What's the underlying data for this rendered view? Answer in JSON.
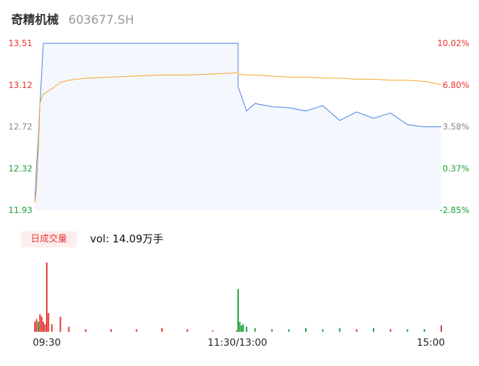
{
  "header": {
    "stock_name": "奇精机械",
    "stock_code": "603677.SH"
  },
  "volume_panel": {
    "tab_label": "日成交量",
    "summary": "vol: 14.09万手"
  },
  "colors": {
    "up": "#e8332f",
    "down": "#1aa33a",
    "price_line": "#4a7ee6",
    "avg_line": "#f5a623",
    "area_fill": "#f4f7fd",
    "neutral": "#888888"
  },
  "chart_data": {
    "type": "line",
    "title": "",
    "y_price_ticks": [
      "13.51",
      "13.12",
      "12.72",
      "12.32",
      "11.93"
    ],
    "y_pct_ticks": [
      "10.02%",
      "6.80%",
      "3.58%",
      "0.37%",
      "-2.85%"
    ],
    "ylim": [
      11.93,
      13.51
    ],
    "time_labels": [
      "09:30",
      "11:30/13:00",
      "15:00"
    ],
    "x": [
      "09:30",
      "09:31",
      "09:32",
      "09:33",
      "09:35",
      "09:40",
      "09:45",
      "09:50",
      "10:00",
      "10:15",
      "10:30",
      "10:45",
      "11:00",
      "11:15",
      "11:29",
      "11:30",
      "13:00",
      "13:05",
      "13:10",
      "13:20",
      "13:30",
      "13:40",
      "13:50",
      "14:00",
      "14:10",
      "14:20",
      "14:30",
      "14:40",
      "14:50",
      "15:00"
    ],
    "series": [
      {
        "values": [
          12.02,
          12.35,
          12.61,
          12.95,
          13.51,
          13.51,
          13.51,
          13.51,
          13.51,
          13.51,
          13.51,
          13.51,
          13.51,
          13.51,
          13.51,
          13.51,
          13.1,
          12.87,
          12.94,
          12.91,
          12.9,
          12.87,
          12.92,
          12.78,
          12.86,
          12.8,
          12.85,
          12.74,
          12.72,
          12.72
        ]
      },
      {
        "values": [
          12.0,
          12.14,
          12.5,
          12.95,
          13.03,
          13.08,
          13.14,
          13.16,
          13.18,
          13.19,
          13.2,
          13.21,
          13.21,
          13.22,
          13.23,
          13.24,
          13.22,
          13.21,
          13.21,
          13.2,
          13.19,
          13.19,
          13.18,
          13.18,
          13.17,
          13.17,
          13.16,
          13.16,
          13.15,
          13.12
        ]
      }
    ],
    "volume": {
      "x": [
        "09:30",
        "09:31",
        "09:32",
        "09:33",
        "09:34",
        "09:35",
        "09:36",
        "09:37",
        "09:38",
        "09:40",
        "09:45",
        "09:50",
        "10:00",
        "10:15",
        "10:30",
        "10:45",
        "11:00",
        "11:15",
        "11:29",
        "13:00",
        "13:01",
        "13:02",
        "13:03",
        "13:05",
        "13:10",
        "13:20",
        "13:30",
        "13:40",
        "13:50",
        "14:00",
        "14:10",
        "14:20",
        "14:30",
        "14:40",
        "14:50",
        "15:00"
      ],
      "values": [
        0.08,
        0.1,
        0.08,
        0.14,
        0.12,
        0.08,
        0.06,
        0.55,
        0.15,
        0.06,
        0.12,
        0.04,
        0.02,
        0.02,
        0.02,
        0.03,
        0.02,
        0.01,
        0.01,
        0.34,
        0.08,
        0.05,
        0.06,
        0.04,
        0.03,
        0.02,
        0.02,
        0.03,
        0.02,
        0.03,
        0.02,
        0.03,
        0.02,
        0.02,
        0.02,
        0.05
      ],
      "direction": [
        "up",
        "up",
        "down",
        "up",
        "up",
        "up",
        "up",
        "up",
        "up",
        "up",
        "up",
        "up",
        "up",
        "up",
        "up",
        "up",
        "up",
        "up",
        "up",
        "down",
        "down",
        "down",
        "down",
        "down",
        "down",
        "down",
        "down",
        "down",
        "down",
        "down",
        "up",
        "down",
        "up",
        "down",
        "down",
        "up"
      ]
    }
  }
}
